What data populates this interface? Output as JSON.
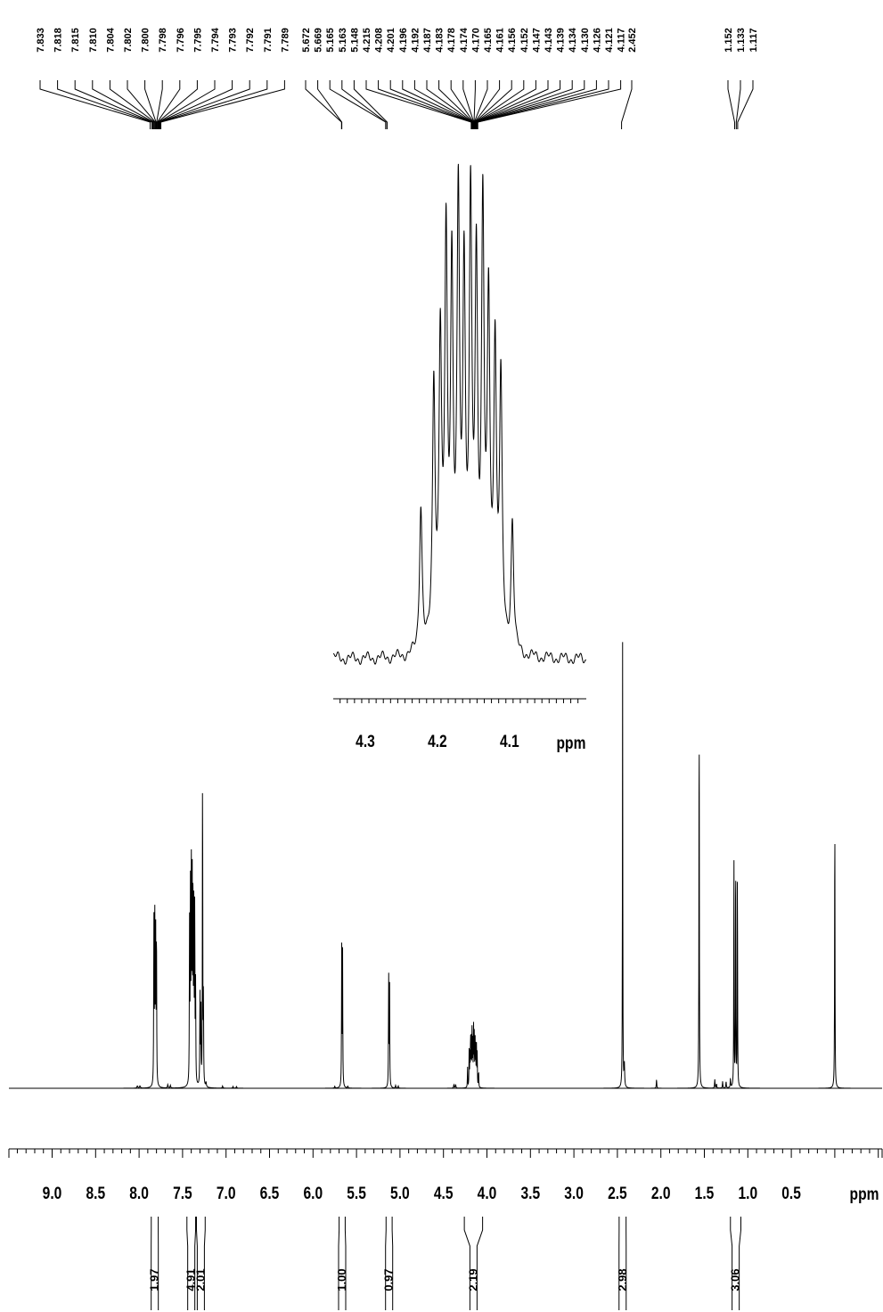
{
  "chart_data": {
    "type": "line",
    "title": "",
    "xlabel": "ppm",
    "ylabel": "",
    "x_reversed": true,
    "xlim": [
      9.5,
      -0.5
    ],
    "major_ticks": [
      "9.0",
      "8.5",
      "8.0",
      "7.5",
      "7.0",
      "6.5",
      "6.0",
      "5.5",
      "5.0",
      "4.5",
      "4.0",
      "3.5",
      "3.0",
      "2.5",
      "2.0",
      "1.5",
      "1.0",
      "0.5"
    ],
    "series": [
      {
        "peaks": [
          {
            "ppm": 8.02,
            "height": 0.005,
            "width": 0.006
          },
          {
            "ppm": 7.99,
            "height": 0.005,
            "width": 0.006
          },
          {
            "ppm": 7.83,
            "height": 0.38,
            "width": 0.0025
          },
          {
            "ppm": 7.82,
            "height": 0.4,
            "width": 0.0025
          },
          {
            "ppm": 7.81,
            "height": 0.39,
            "width": 0.0025
          },
          {
            "ppm": 7.8,
            "height": 0.36,
            "width": 0.0025
          },
          {
            "ppm": 7.67,
            "height": 0.008,
            "width": 0.004
          },
          {
            "ppm": 7.64,
            "height": 0.006,
            "width": 0.004
          },
          {
            "ppm": 7.42,
            "height": 0.36,
            "width": 0.0025
          },
          {
            "ppm": 7.41,
            "height": 0.45,
            "width": 0.0025
          },
          {
            "ppm": 7.4,
            "height": 0.52,
            "width": 0.0025
          },
          {
            "ppm": 7.39,
            "height": 0.53,
            "width": 0.0025
          },
          {
            "ppm": 7.38,
            "height": 0.46,
            "width": 0.0025
          },
          {
            "ppm": 7.37,
            "height": 0.42,
            "width": 0.0025
          },
          {
            "ppm": 7.36,
            "height": 0.4,
            "width": 0.0025
          },
          {
            "ppm": 7.35,
            "height": 0.22,
            "width": 0.0025
          },
          {
            "ppm": 7.3,
            "height": 0.22,
            "width": 0.0025
          },
          {
            "ppm": 7.29,
            "height": 0.2,
            "width": 0.0025
          },
          {
            "ppm": 7.27,
            "height": 0.78,
            "width": 0.0022
          },
          {
            "ppm": 7.26,
            "height": 0.2,
            "width": 0.0025
          },
          {
            "ppm": 7.23,
            "height": 0.01,
            "width": 0.004
          },
          {
            "ppm": 7.04,
            "height": 0.005,
            "width": 0.004
          },
          {
            "ppm": 6.92,
            "height": 0.004,
            "width": 0.004
          },
          {
            "ppm": 6.88,
            "height": 0.004,
            "width": 0.004
          },
          {
            "ppm": 5.75,
            "height": 0.004,
            "width": 0.004
          },
          {
            "ppm": 5.67,
            "height": 0.31,
            "width": 0.0025
          },
          {
            "ppm": 5.66,
            "height": 0.3,
            "width": 0.0025
          },
          {
            "ppm": 5.6,
            "height": 0.004,
            "width": 0.004
          },
          {
            "ppm": 5.13,
            "height": 0.25,
            "width": 0.0025
          },
          {
            "ppm": 5.12,
            "height": 0.24,
            "width": 0.0025
          },
          {
            "ppm": 5.05,
            "height": 0.006,
            "width": 0.004
          },
          {
            "ppm": 5.02,
            "height": 0.005,
            "width": 0.004
          },
          {
            "ppm": 4.38,
            "height": 0.008,
            "width": 0.004
          },
          {
            "ppm": 4.36,
            "height": 0.008,
            "width": 0.004
          },
          {
            "ppm": 4.223,
            "height": 0.045,
            "width": 0.0022
          },
          {
            "ppm": 4.205,
            "height": 0.08,
            "width": 0.0022
          },
          {
            "ppm": 4.196,
            "height": 0.09,
            "width": 0.0022
          },
          {
            "ppm": 4.188,
            "height": 0.12,
            "width": 0.0022
          },
          {
            "ppm": 4.18,
            "height": 0.11,
            "width": 0.0022
          },
          {
            "ppm": 4.171,
            "height": 0.13,
            "width": 0.0022
          },
          {
            "ppm": 4.163,
            "height": 0.11,
            "width": 0.0022
          },
          {
            "ppm": 4.154,
            "height": 0.13,
            "width": 0.0022
          },
          {
            "ppm": 4.146,
            "height": 0.11,
            "width": 0.0022
          },
          {
            "ppm": 4.137,
            "height": 0.13,
            "width": 0.0022
          },
          {
            "ppm": 4.129,
            "height": 0.1,
            "width": 0.0022
          },
          {
            "ppm": 4.12,
            "height": 0.09,
            "width": 0.0022
          },
          {
            "ppm": 4.112,
            "height": 0.08,
            "width": 0.0022
          },
          {
            "ppm": 4.096,
            "height": 0.04,
            "width": 0.0022
          },
          {
            "ppm": 2.44,
            "height": 1.0,
            "width": 0.0022
          },
          {
            "ppm": 2.42,
            "height": 0.05,
            "width": 0.004
          },
          {
            "ppm": 2.05,
            "height": 0.02,
            "width": 0.003
          },
          {
            "ppm": 1.56,
            "height": 0.89,
            "width": 0.0025
          },
          {
            "ppm": 1.38,
            "height": 0.02,
            "width": 0.003
          },
          {
            "ppm": 1.36,
            "height": 0.01,
            "width": 0.003
          },
          {
            "ppm": 1.29,
            "height": 0.015,
            "width": 0.003
          },
          {
            "ppm": 1.25,
            "height": 0.015,
            "width": 0.003
          },
          {
            "ppm": 1.2,
            "height": 0.02,
            "width": 0.003
          },
          {
            "ppm": 1.16,
            "height": 0.55,
            "width": 0.0022
          },
          {
            "ppm": 1.14,
            "height": 0.58,
            "width": 0.0022
          },
          {
            "ppm": 1.12,
            "height": 0.53,
            "width": 0.0022
          },
          {
            "ppm": 0.0,
            "height": 0.64,
            "width": 0.0025
          }
        ]
      }
    ],
    "peak_labels": [
      "7.833",
      "7.818",
      "7.815",
      "7.810",
      "7.804",
      "7.802",
      "7.800",
      "7.798",
      "7.796",
      "7.795",
      "7.794",
      "7.793",
      "7.792",
      "7.791",
      "7.789",
      "5.672",
      "5.669",
      "5.165",
      "5.163",
      "5.148",
      "4.215",
      "4.208",
      "4.201",
      "4.196",
      "4.192",
      "4.187",
      "4.183",
      "4.178",
      "4.174",
      "4.170",
      "4.165",
      "4.161",
      "4.156",
      "4.152",
      "4.147",
      "4.143",
      "4.139",
      "4.134",
      "4.130",
      "4.126",
      "4.121",
      "4.117",
      "2.452",
      "1.152",
      "1.133",
      "1.117"
    ],
    "integrals": [
      {
        "label": "1.97",
        "from": 7.86,
        "to": 7.78
      },
      {
        "label": "4.91",
        "from": 7.45,
        "to": 7.35
      },
      {
        "label": "2.01",
        "from": 7.34,
        "to": 7.24
      },
      {
        "label": "1.00",
        "from": 5.7,
        "to": 5.63
      },
      {
        "label": "0.97",
        "from": 5.16,
        "to": 5.09
      },
      {
        "label": "2.19",
        "from": 4.26,
        "to": 4.05
      },
      {
        "label": "2.98",
        "from": 2.48,
        "to": 2.4
      },
      {
        "label": "3.06",
        "from": 1.2,
        "to": 1.08
      }
    ],
    "inset": {
      "xlabel": "ppm",
      "xlim": [
        4.335,
        4.015
      ],
      "major_ticks": [
        "4.3",
        "4.2",
        "4.1"
      ]
    }
  }
}
